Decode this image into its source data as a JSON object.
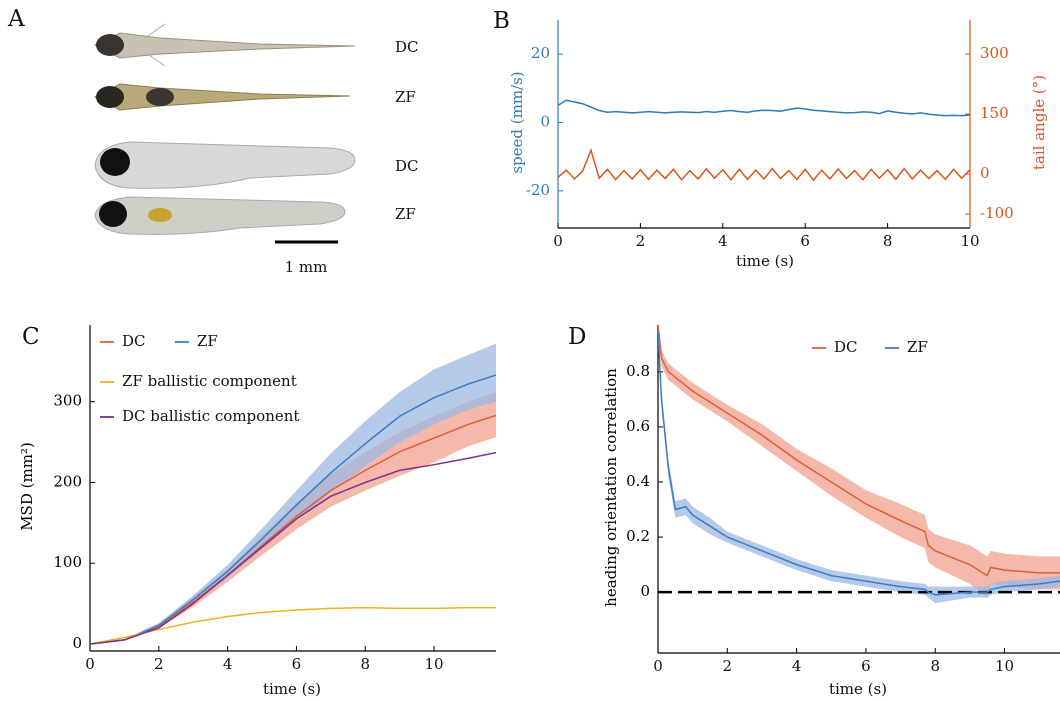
{
  "figure_a": {
    "panel": "A",
    "labels": [
      "DC",
      "ZF",
      "DC",
      "ZF"
    ],
    "scale_bar": "1 mm"
  },
  "chart_data": [
    {
      "type": "line",
      "panel": "B",
      "xlabel": "time (s)",
      "ylabel": "speed (mm/s)",
      "y2label": "tail angle (°)",
      "xlim": [
        0,
        10
      ],
      "xticks": [
        0,
        2,
        4,
        6,
        8,
        10
      ],
      "ylim": [
        -30,
        30
      ],
      "yticks": [
        -20,
        0,
        20
      ],
      "ycolor": "#2b7bba",
      "y2lim": [
        -127,
        385
      ],
      "y2ticks": [
        -100,
        0,
        150,
        300
      ],
      "y2color": "#d9541e",
      "x": [
        0,
        0.2,
        0.4,
        0.6,
        0.8,
        1,
        1.2,
        1.4,
        1.6,
        1.8,
        2,
        2.2,
        2.4,
        2.6,
        2.8,
        3,
        3.2,
        3.4,
        3.6,
        3.8,
        4,
        4.2,
        4.4,
        4.6,
        4.8,
        5,
        5.2,
        5.4,
        5.6,
        5.8,
        6,
        6.2,
        6.4,
        6.6,
        6.8,
        7,
        7.2,
        7.4,
        7.6,
        7.8,
        8,
        8.2,
        8.4,
        8.6,
        8.8,
        9,
        9.2,
        9.4,
        9.6,
        9.8,
        10
      ],
      "series": [
        {
          "color": "#2b7bba",
          "values": [
            5,
            6.5,
            6,
            5.5,
            4.5,
            3.5,
            3,
            3.2,
            3,
            2.8,
            3,
            3.2,
            3,
            2.8,
            3,
            3.1,
            3,
            2.9,
            3.2,
            3,
            3.3,
            3.5,
            3.2,
            3,
            3.4,
            3.6,
            3.5,
            3.3,
            3.8,
            4.2,
            4,
            3.6,
            3.4,
            3.2,
            3,
            2.8,
            2.9,
            3.1,
            3,
            2.6,
            3.4,
            3,
            2.7,
            2.5,
            2.8,
            2.4,
            2.2,
            2,
            2.1,
            2,
            2.2
          ]
        },
        {
          "color": "#d9541e",
          "axis": "y2",
          "values": [
            -8,
            10,
            -12,
            8,
            60,
            -10,
            12,
            -14,
            9,
            -12,
            11,
            -13,
            10,
            -11,
            12,
            -14,
            9,
            -12,
            13,
            -10,
            11,
            -14,
            12,
            -13,
            10,
            -12,
            14,
            -11,
            9,
            -13,
            12,
            -15,
            10,
            -12,
            13,
            -11,
            9,
            -14,
            12,
            -10,
            11,
            -13,
            14,
            -12,
            10,
            -11,
            9,
            -13,
            12,
            -10,
            11
          ]
        }
      ]
    },
    {
      "type": "line",
      "panel": "C",
      "xlabel": "time (s)",
      "ylabel": "MSD (mm²)",
      "xlim": [
        0,
        11.8
      ],
      "xticks": [
        0,
        2,
        4,
        6,
        8,
        10
      ],
      "ylim": [
        -5,
        395
      ],
      "yticks": [
        0,
        100,
        200,
        300
      ],
      "legend": true,
      "x": [
        0,
        1,
        2,
        3,
        4,
        5,
        6,
        7,
        8,
        9,
        10,
        11,
        11.8
      ],
      "series": [
        {
          "name": "DC",
          "color": "#e0603a",
          "band_color": "#f2a290",
          "values": [
            0,
            5,
            22,
            52,
            85,
            122,
            158,
            190,
            215,
            238,
            255,
            272,
            283
          ],
          "lower": [
            0,
            4,
            19,
            46,
            77,
            110,
            142,
            170,
            190,
            208,
            225,
            245,
            256
          ],
          "upper": [
            0,
            6,
            25,
            58,
            93,
            134,
            175,
            210,
            238,
            262,
            282,
            300,
            312
          ]
        },
        {
          "name": "ZF",
          "color": "#3b7dc4",
          "band_color": "#9bb8e0",
          "values": [
            0,
            5,
            23,
            55,
            90,
            130,
            172,
            212,
            248,
            282,
            305,
            322,
            333
          ],
          "lower": [
            0,
            4,
            20,
            50,
            82,
            117,
            153,
            188,
            220,
            250,
            272,
            290,
            300
          ],
          "upper": [
            0,
            6,
            26,
            60,
            98,
            143,
            190,
            236,
            276,
            312,
            340,
            358,
            372
          ]
        },
        {
          "name": "ZF ballistic component",
          "color": "#edb120",
          "values": [
            0,
            8,
            18,
            27,
            34,
            39,
            42,
            44,
            45,
            44,
            44,
            45,
            45
          ]
        },
        {
          "name": "DC ballistic component",
          "color": "#7e2f8e",
          "values": [
            0,
            5,
            20,
            50,
            85,
            120,
            155,
            183,
            200,
            215,
            222,
            230,
            237
          ]
        }
      ]
    },
    {
      "type": "line",
      "panel": "D",
      "xlabel": "time (s)",
      "ylabel": "heading orientation correlation",
      "xlim": [
        0,
        11.6
      ],
      "xticks": [
        0,
        2,
        4,
        6,
        8,
        10
      ],
      "ylim": [
        -0.21,
        0.97
      ],
      "yticks": [
        0,
        0.2,
        0.4,
        0.6,
        0.8
      ],
      "legend": true,
      "hline": 0,
      "x": [
        0,
        0.1,
        0.3,
        0.5,
        0.8,
        1,
        1.5,
        2,
        3,
        4,
        5,
        6,
        7,
        7.7,
        7.8,
        8,
        9,
        9.5,
        9.6,
        10,
        11,
        11.6
      ],
      "series": [
        {
          "name": "DC",
          "color": "#e0603a",
          "band_color": "#f2a290",
          "values": [
            0.97,
            0.85,
            0.8,
            0.78,
            0.75,
            0.73,
            0.69,
            0.65,
            0.57,
            0.48,
            0.4,
            0.32,
            0.26,
            0.22,
            0.17,
            0.15,
            0.1,
            0.06,
            0.09,
            0.08,
            0.07,
            0.07
          ],
          "lower": [
            0.95,
            0.82,
            0.77,
            0.75,
            0.72,
            0.7,
            0.66,
            0.62,
            0.53,
            0.44,
            0.35,
            0.27,
            0.2,
            0.16,
            0.11,
            0.09,
            0.03,
            -0.02,
            0.03,
            0.02,
            0.01,
            0.01
          ],
          "upper": [
            0.99,
            0.88,
            0.83,
            0.81,
            0.78,
            0.76,
            0.72,
            0.68,
            0.61,
            0.52,
            0.45,
            0.37,
            0.32,
            0.28,
            0.23,
            0.21,
            0.17,
            0.13,
            0.15,
            0.14,
            0.13,
            0.13
          ]
        },
        {
          "name": "ZF",
          "color": "#3b7dc4",
          "band_color": "#9bb8e0",
          "values": [
            0.95,
            0.7,
            0.45,
            0.3,
            0.31,
            0.28,
            0.24,
            0.2,
            0.15,
            0.1,
            0.06,
            0.04,
            0.02,
            0.01,
            0,
            -0.01,
            0,
            0,
            0.01,
            0.02,
            0.03,
            0.04
          ],
          "lower": [
            0.93,
            0.67,
            0.42,
            0.27,
            0.28,
            0.25,
            0.21,
            0.18,
            0.13,
            0.08,
            0.04,
            0.02,
            0,
            -0.01,
            -0.02,
            -0.04,
            -0.02,
            -0.02,
            -0.01,
            0,
            0.01,
            0.02
          ],
          "upper": [
            0.97,
            0.73,
            0.48,
            0.33,
            0.34,
            0.31,
            0.27,
            0.22,
            0.17,
            0.12,
            0.08,
            0.06,
            0.04,
            0.03,
            0.02,
            0.02,
            0.02,
            0.02,
            0.03,
            0.04,
            0.05,
            0.06
          ]
        }
      ]
    }
  ]
}
